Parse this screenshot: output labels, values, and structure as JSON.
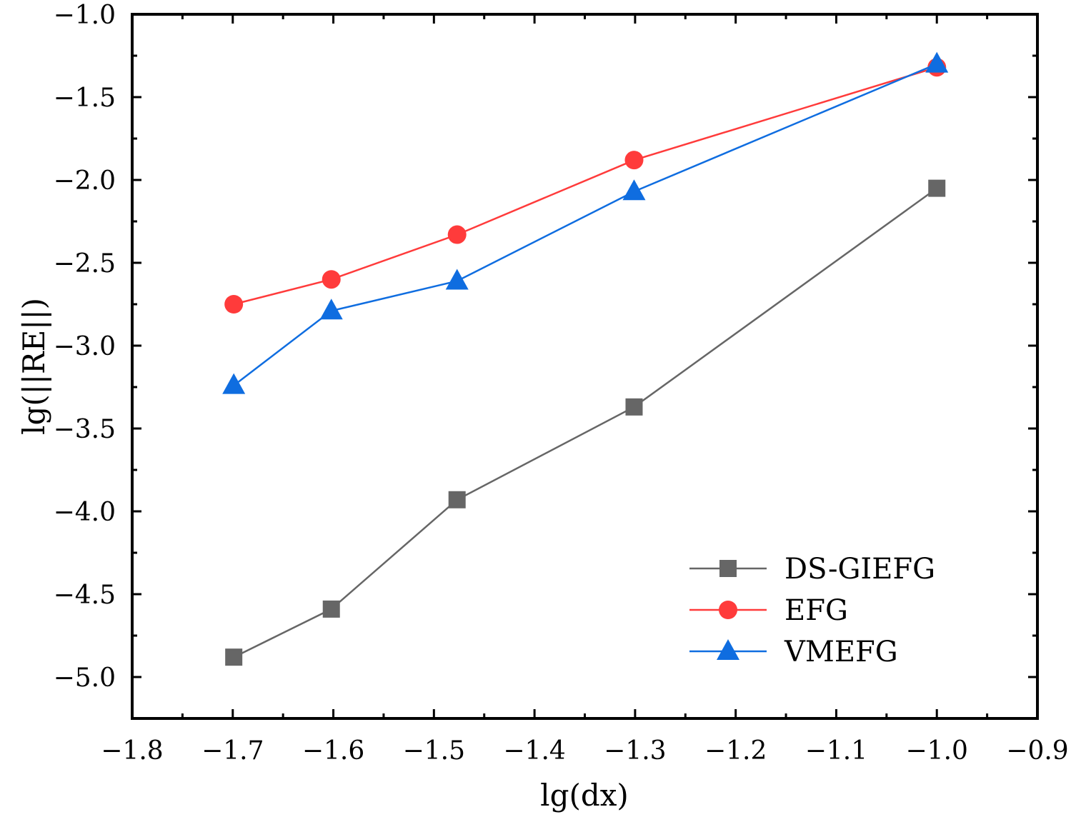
{
  "chart_data": {
    "type": "line",
    "title": "",
    "xlabel": "lg(dx)",
    "ylabel": "lg(||RE||)",
    "xlim": [
      -1.8,
      -0.9
    ],
    "ylim": [
      -5.25,
      -1.0
    ],
    "x_ticks": [
      -1.8,
      -1.7,
      -1.6,
      -1.5,
      -1.4,
      -1.3,
      -1.2,
      -1.1,
      -1.0,
      -0.9
    ],
    "x_tick_labels": [
      "−1.8",
      "−1.7",
      "−1.6",
      "−1.5",
      "−1.4",
      "−1.3",
      "−1.2",
      "−1.1",
      "−1.0",
      "−0.9"
    ],
    "y_ticks": [
      -1.0,
      -1.5,
      -2.0,
      -2.5,
      -3.0,
      -3.5,
      -4.0,
      -4.5,
      -5.0
    ],
    "y_tick_labels": [
      "−1.0",
      "−1.5",
      "−2.0",
      "−2.5",
      "−3.0",
      "−3.5",
      "−4.0",
      "−4.5",
      "−5.0"
    ],
    "grid": false,
    "legend_position": "bottom-right",
    "series": [
      {
        "name": "DS-GIEFG",
        "color": "#666666",
        "marker": "square",
        "x": [
          -1.699,
          -1.602,
          -1.477,
          -1.301,
          -1.0
        ],
        "y": [
          -4.88,
          -4.59,
          -3.93,
          -3.37,
          -2.05
        ]
      },
      {
        "name": "EFG",
        "color": "#ff3b3b",
        "marker": "circle",
        "x": [
          -1.699,
          -1.602,
          -1.477,
          -1.301,
          -1.0
        ],
        "y": [
          -2.75,
          -2.6,
          -2.33,
          -1.88,
          -1.32
        ]
      },
      {
        "name": "VMEFG",
        "color": "#0f6de0",
        "marker": "triangle",
        "x": [
          -1.699,
          -1.602,
          -1.477,
          -1.301,
          -1.0
        ],
        "y": [
          -3.24,
          -2.79,
          -2.61,
          -2.07,
          -1.3
        ]
      }
    ]
  }
}
